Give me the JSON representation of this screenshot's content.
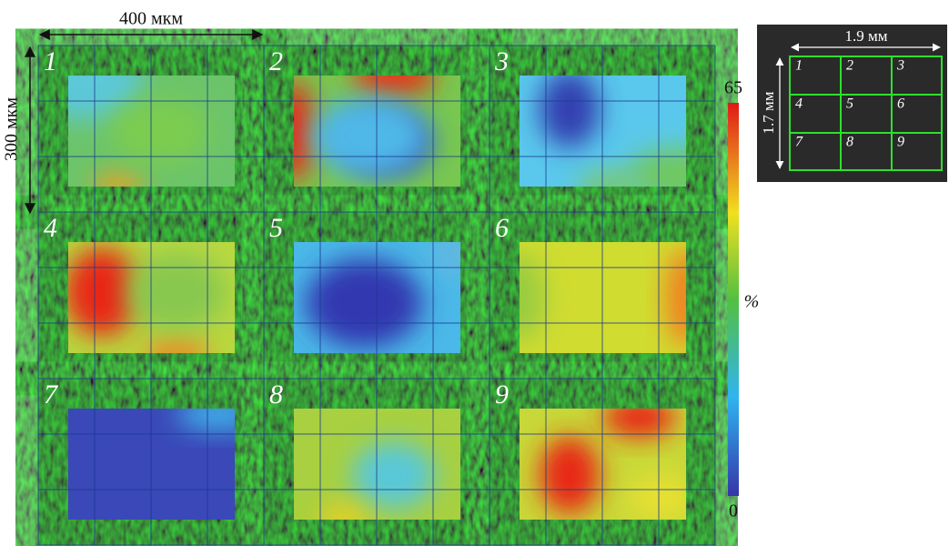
{
  "scale_bar": {
    "horizontal": "400 мкм",
    "vertical": "300 мкм"
  },
  "panels": [
    {
      "label": "1"
    },
    {
      "label": "2"
    },
    {
      "label": "3"
    },
    {
      "label": "4"
    },
    {
      "label": "5"
    },
    {
      "label": "6"
    },
    {
      "label": "7"
    },
    {
      "label": "8"
    },
    {
      "label": "9"
    }
  ],
  "colorbar": {
    "max": 65,
    "min": 0,
    "unit": "%"
  },
  "inset": {
    "width": "1.9 мм",
    "height": "1.7 мм",
    "cells": [
      "1",
      "2",
      "3",
      "4",
      "5",
      "6",
      "7",
      "8",
      "9"
    ]
  }
}
